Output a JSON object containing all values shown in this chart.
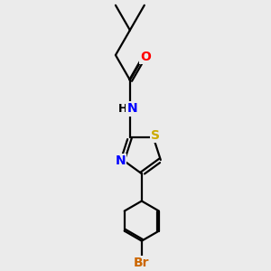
{
  "bg_color": "#ebebeb",
  "bond_color": "#000000",
  "bond_width": 1.6,
  "atom_colors": {
    "O": "#ff0000",
    "N": "#0000ff",
    "S": "#ccaa00",
    "Br": "#cc6600",
    "C": "#000000",
    "H": "#000000"
  },
  "font_size": 10,
  "fig_size": [
    3.0,
    3.0
  ],
  "dpi": 100
}
